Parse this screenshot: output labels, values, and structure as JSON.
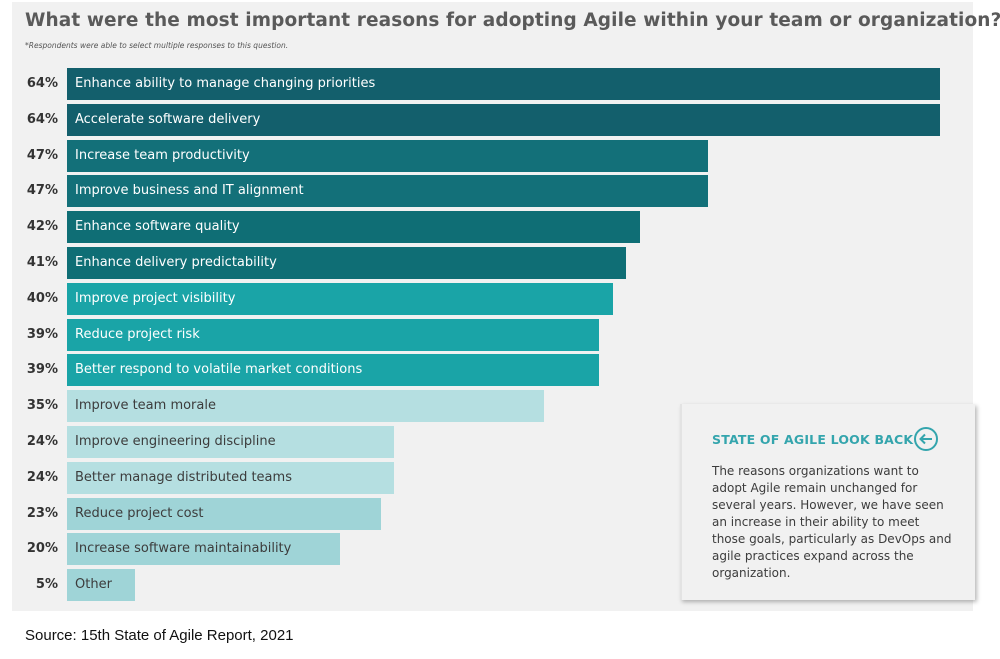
{
  "title": "What were the most important reasons for adopting Agile within your team or organization?",
  "footnote": "*Respondents were able to select multiple responses to this question.",
  "chart_data": {
    "type": "bar",
    "orientation": "horizontal",
    "title": "What were the most important reasons for adopting Agile within your team or organization?",
    "xlabel": "",
    "ylabel": "",
    "xlim": [
      0,
      64
    ],
    "unit": "%",
    "categories": [
      "Enhance ability to manage changing priorities",
      "Accelerate software delivery",
      "Increase team productivity",
      "Improve business and IT alignment",
      "Enhance software quality",
      "Enhance delivery predictability",
      "Improve project visibility",
      "Reduce project risk",
      "Better respond to volatile market conditions",
      "Improve team morale",
      "Improve engineering discipline",
      "Better manage distributed teams",
      "Reduce project cost",
      "Increase software maintainability",
      "Other"
    ],
    "values": [
      64,
      64,
      47,
      47,
      42,
      41,
      40,
      39,
      39,
      35,
      24,
      24,
      23,
      20,
      5
    ],
    "value_labels": [
      "64%",
      "64%",
      "47%",
      "47%",
      "42%",
      "41%",
      "40%",
      "39%",
      "39%",
      "35%",
      "24%",
      "24%",
      "23%",
      "20%",
      "5%"
    ],
    "colors": [
      "#135f6c",
      "#135f6c",
      "#137079",
      "#137079",
      "#0f6e75",
      "#0f6e75",
      "#1aa4a7",
      "#1aa4a7",
      "#1aa4a7",
      "#b5dfe1",
      "#b5dfe1",
      "#b5dfe1",
      "#9fd4d7",
      "#9fd4d7",
      "#9fd4d7"
    ],
    "label_styles": [
      "dark",
      "dark",
      "dark",
      "dark",
      "dark",
      "dark",
      "dark",
      "dark",
      "dark",
      "light",
      "light",
      "light",
      "light",
      "light",
      "light"
    ]
  },
  "callout": {
    "heading": "STATE OF AGILE LOOK BACK",
    "icon": "arrow-left-circle-icon",
    "body": "The reasons organizations want to adopt Agile remain unchanged for several years. However, we have seen an increase in their ability to meet those goals, particularly as DevOps and agile practices expand across the organization."
  },
  "source": "Source: 15th State of Agile Report, 2021"
}
